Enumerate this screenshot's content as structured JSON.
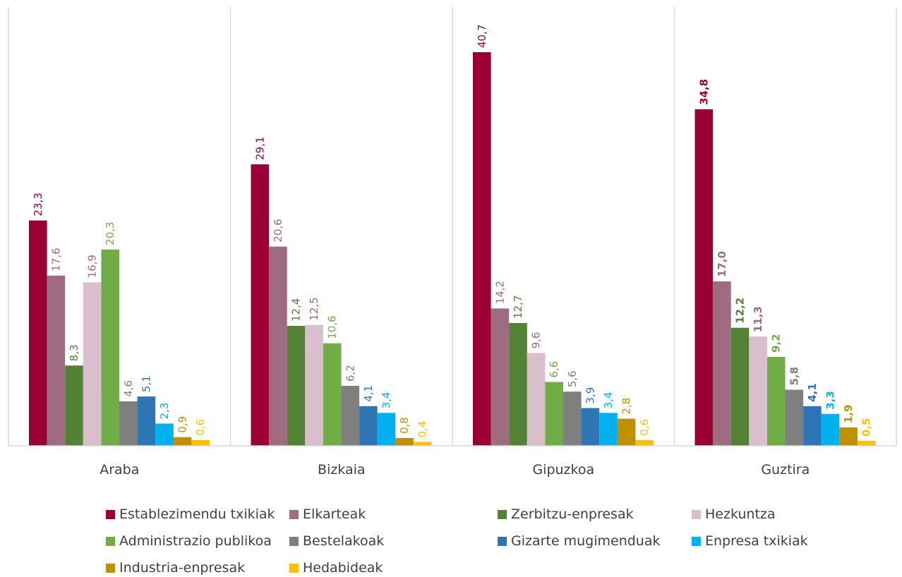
{
  "chart_data": {
    "type": "bar",
    "categories": [
      "Araba",
      "Bizkaia",
      "Gipuzkoa",
      "Guztira"
    ],
    "series": [
      {
        "name": "Establezimendu txikiak",
        "color": "#9b0034",
        "values": [
          23.3,
          29.1,
          40.7,
          34.8
        ],
        "labels": [
          "23,3",
          "29,1",
          "40,7",
          "34,8"
        ]
      },
      {
        "name": "Elkarteak",
        "color": "#9e6b81",
        "values": [
          17.6,
          20.6,
          14.2,
          17.0
        ],
        "labels": [
          "17,6",
          "20,6",
          "14,2",
          "17,0"
        ]
      },
      {
        "name": "Zerbitzu-enpresak",
        "color": "#548235",
        "values": [
          8.3,
          12.4,
          12.7,
          12.2
        ],
        "labels": [
          "8,3",
          "12,4",
          "12,7",
          "12,2"
        ]
      },
      {
        "name": "Hezkuntza",
        "color": "#d9bfcb",
        "values": [
          16.9,
          12.5,
          9.6,
          11.3
        ],
        "labels": [
          "16,9",
          "12,5",
          "9,6",
          "11,3"
        ]
      },
      {
        "name": "Administrazio publikoa",
        "color": "#70ad47",
        "values": [
          20.3,
          10.6,
          6.6,
          9.2
        ],
        "labels": [
          "20,3",
          "10,6",
          "6,6",
          "9,2"
        ]
      },
      {
        "name": "Bestelakoak",
        "color": "#7f7f7f",
        "values": [
          4.6,
          6.2,
          5.6,
          5.8
        ],
        "labels": [
          "4,6",
          "6,2",
          "5,6",
          "5,8"
        ]
      },
      {
        "name": "Gizarte mugimenduak",
        "color": "#2e75b6",
        "values": [
          5.1,
          4.1,
          3.9,
          4.1
        ],
        "labels": [
          "5,1",
          "4,1",
          "3,9",
          "4,1"
        ]
      },
      {
        "name": "Enpresa txikiak",
        "color": "#00b0f0",
        "values": [
          2.3,
          3.4,
          3.4,
          3.3
        ],
        "labels": [
          "2,3",
          "3,4",
          "3,4",
          "3,3"
        ]
      },
      {
        "name": "Industria-enpresak",
        "color": "#bf9000",
        "values": [
          0.9,
          0.8,
          2.8,
          1.9
        ],
        "labels": [
          "0,9",
          "0,8",
          "2,8",
          "1,9"
        ]
      },
      {
        "name": "Hedabideak",
        "color": "#ffc000",
        "values": [
          0.6,
          0.4,
          0.6,
          0.5
        ],
        "labels": [
          "0,6",
          "0,4",
          "0,6",
          "0,5"
        ]
      }
    ],
    "bold_labels_category": "Guztira",
    "label_rotation": "vertical",
    "ylim": [
      0,
      45
    ],
    "grid": false,
    "category_separators": true,
    "legend_position": "bottom",
    "title": "",
    "xlabel": "",
    "ylabel": ""
  }
}
